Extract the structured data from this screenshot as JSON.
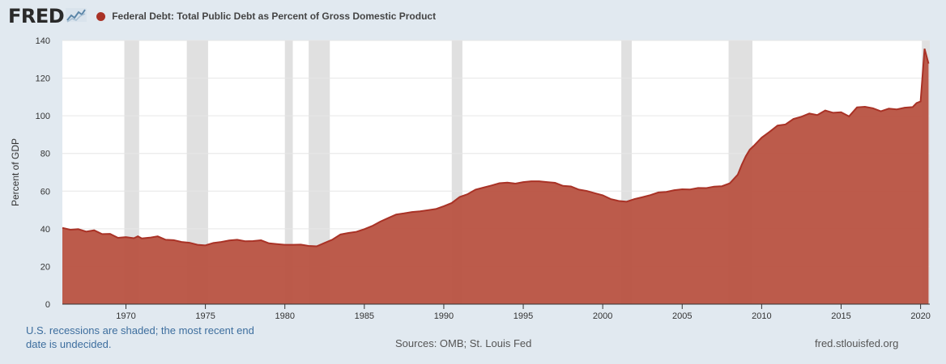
{
  "header": {
    "logo_text": "FRED",
    "logo_icon": "line-chart-icon",
    "series_title": "Federal Debt: Total Public Debt as Percent of Gross Domestic Product"
  },
  "colors": {
    "series": "#a93226",
    "series_fill": "#b95444",
    "background": "#e1e9f0",
    "plot_background": "#ffffff",
    "recession": "#e0e0e0"
  },
  "chart_data": {
    "type": "area",
    "title": "Federal Debt: Total Public Debt as Percent of Gross Domestic Product",
    "ylabel": "Percent of GDP",
    "xlabel": "",
    "xlim": [
      1966.0,
      2020.58
    ],
    "ylim": [
      0,
      140
    ],
    "yticks": [
      0,
      20,
      40,
      60,
      80,
      100,
      120,
      140
    ],
    "xticks": [
      1970,
      1975,
      1980,
      1985,
      1990,
      1995,
      2000,
      2005,
      2010,
      2015,
      2020
    ],
    "grid": true,
    "legend": "top-left",
    "recessions": [
      [
        1969.9,
        1970.83
      ],
      [
        1973.83,
        1975.17
      ],
      [
        1980.0,
        1980.5
      ],
      [
        1981.5,
        1982.83
      ],
      [
        1990.5,
        1991.17
      ],
      [
        2001.17,
        2001.83
      ],
      [
        2007.92,
        2009.42
      ],
      [
        2020.08,
        2020.58
      ]
    ],
    "series": [
      {
        "name": "Federal Debt: Total Public Debt as Percent of Gross Domestic Product",
        "points": [
          [
            1966.0,
            40.5
          ],
          [
            1966.5,
            39.5
          ],
          [
            1967.0,
            39.8
          ],
          [
            1967.5,
            38.5
          ],
          [
            1968.0,
            39.2
          ],
          [
            1968.5,
            37.2
          ],
          [
            1969.0,
            37.3
          ],
          [
            1969.5,
            35.2
          ],
          [
            1970.0,
            35.6
          ],
          [
            1970.5,
            35.0
          ],
          [
            1970.75,
            36.0
          ],
          [
            1971.0,
            34.9
          ],
          [
            1971.5,
            35.3
          ],
          [
            1972.0,
            36.0
          ],
          [
            1972.5,
            34.2
          ],
          [
            1973.0,
            34.0
          ],
          [
            1973.5,
            33.0
          ],
          [
            1974.0,
            32.6
          ],
          [
            1974.5,
            31.5
          ],
          [
            1975.0,
            31.2
          ],
          [
            1975.5,
            32.5
          ],
          [
            1976.0,
            33.0
          ],
          [
            1976.5,
            33.8
          ],
          [
            1977.0,
            34.2
          ],
          [
            1977.5,
            33.4
          ],
          [
            1978.0,
            33.5
          ],
          [
            1978.5,
            33.9
          ],
          [
            1979.0,
            32.3
          ],
          [
            1979.5,
            31.9
          ],
          [
            1980.0,
            31.5
          ],
          [
            1980.5,
            31.5
          ],
          [
            1981.0,
            31.6
          ],
          [
            1981.5,
            30.9
          ],
          [
            1982.0,
            30.7
          ],
          [
            1982.5,
            32.5
          ],
          [
            1983.0,
            34.3
          ],
          [
            1983.5,
            37.0
          ],
          [
            1984.0,
            37.8
          ],
          [
            1984.5,
            38.4
          ],
          [
            1985.0,
            39.8
          ],
          [
            1985.5,
            41.5
          ],
          [
            1986.0,
            43.8
          ],
          [
            1986.5,
            45.7
          ],
          [
            1987.0,
            47.6
          ],
          [
            1987.5,
            48.2
          ],
          [
            1988.0,
            48.9
          ],
          [
            1988.5,
            49.3
          ],
          [
            1989.0,
            49.9
          ],
          [
            1989.5,
            50.5
          ],
          [
            1990.0,
            52.0
          ],
          [
            1990.5,
            53.7
          ],
          [
            1991.0,
            56.9
          ],
          [
            1991.5,
            58.4
          ],
          [
            1992.0,
            60.8
          ],
          [
            1992.5,
            61.9
          ],
          [
            1993.0,
            63.0
          ],
          [
            1993.5,
            64.2
          ],
          [
            1994.0,
            64.5
          ],
          [
            1994.5,
            64.0
          ],
          [
            1995.0,
            64.8
          ],
          [
            1995.5,
            65.2
          ],
          [
            1996.0,
            65.2
          ],
          [
            1996.5,
            64.8
          ],
          [
            1997.0,
            64.4
          ],
          [
            1997.5,
            62.8
          ],
          [
            1998.0,
            62.5
          ],
          [
            1998.5,
            60.8
          ],
          [
            1999.0,
            60.1
          ],
          [
            1999.5,
            58.9
          ],
          [
            2000.0,
            57.8
          ],
          [
            2000.5,
            55.8
          ],
          [
            2001.0,
            54.8
          ],
          [
            2001.5,
            54.4
          ],
          [
            2002.0,
            55.8
          ],
          [
            2002.5,
            56.8
          ],
          [
            2003.0,
            57.9
          ],
          [
            2003.5,
            59.3
          ],
          [
            2004.0,
            59.6
          ],
          [
            2004.5,
            60.5
          ],
          [
            2005.0,
            61.0
          ],
          [
            2005.5,
            60.9
          ],
          [
            2006.0,
            61.7
          ],
          [
            2006.5,
            61.6
          ],
          [
            2007.0,
            62.4
          ],
          [
            2007.5,
            62.6
          ],
          [
            2008.0,
            64.2
          ],
          [
            2008.5,
            68.8
          ],
          [
            2008.75,
            74.0
          ],
          [
            2009.0,
            78.5
          ],
          [
            2009.25,
            82.0
          ],
          [
            2009.5,
            84.0
          ],
          [
            2010.0,
            88.4
          ],
          [
            2010.5,
            91.5
          ],
          [
            2011.0,
            94.8
          ],
          [
            2011.5,
            95.4
          ],
          [
            2012.0,
            98.3
          ],
          [
            2012.5,
            99.5
          ],
          [
            2013.0,
            101.2
          ],
          [
            2013.5,
            100.4
          ],
          [
            2014.0,
            102.8
          ],
          [
            2014.5,
            101.6
          ],
          [
            2015.0,
            101.9
          ],
          [
            2015.5,
            99.7
          ],
          [
            2016.0,
            104.5
          ],
          [
            2016.5,
            104.8
          ],
          [
            2017.0,
            104.0
          ],
          [
            2017.5,
            102.4
          ],
          [
            2018.0,
            103.8
          ],
          [
            2018.5,
            103.4
          ],
          [
            2019.0,
            104.3
          ],
          [
            2019.5,
            104.6
          ],
          [
            2019.75,
            106.8
          ],
          [
            2020.0,
            107.6
          ],
          [
            2020.25,
            135.6
          ],
          [
            2020.5,
            127.7
          ]
        ]
      }
    ]
  },
  "footer": {
    "recession_note": "U.S. recessions are shaded; the most recent end date is undecided.",
    "sources": "Sources: OMB; St. Louis Fed",
    "site": "fred.stlouisfed.org"
  }
}
